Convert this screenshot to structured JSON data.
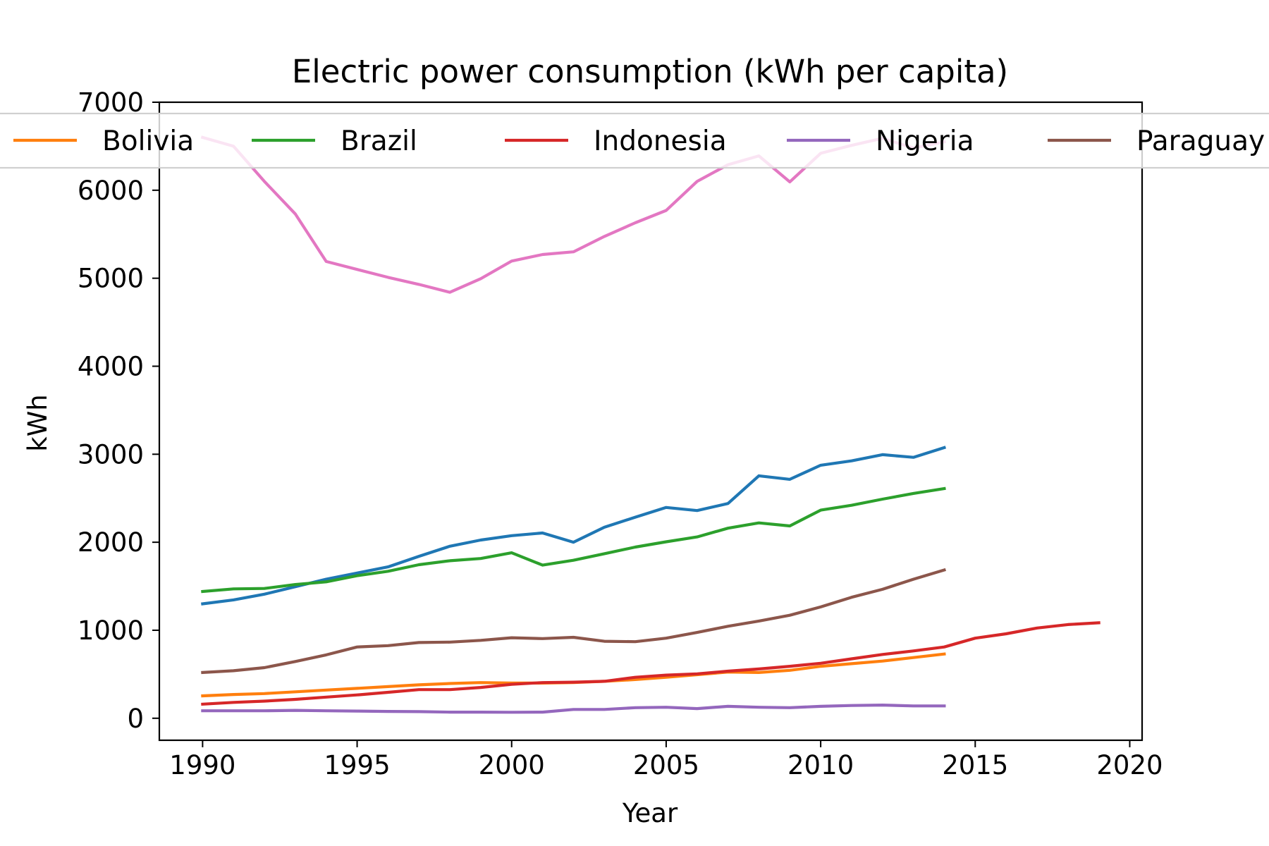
{
  "chart_data": {
    "type": "line",
    "title": "Electric power consumption (kWh per capita)",
    "xlabel": "Year",
    "ylabel": "kWh",
    "xlim": [
      1988.6,
      2020.4
    ],
    "ylim": [
      -250,
      7000
    ],
    "xticks": [
      1990,
      1995,
      2000,
      2005,
      2010,
      2015,
      2020
    ],
    "yticks": [
      0,
      1000,
      2000,
      3000,
      4000,
      5000,
      6000,
      7000
    ],
    "grid": false,
    "legend_position": "top, overlapping plot, extending beyond frame",
    "series": [
      {
        "name": "",
        "color": "#1f77b4",
        "x": [
          1990,
          1991,
          1992,
          1993,
          1994,
          1995,
          1996,
          1997,
          1998,
          1999,
          2000,
          2001,
          2002,
          2003,
          2004,
          2005,
          2006,
          2007,
          2008,
          2009,
          2010,
          2011,
          2012,
          2013,
          2014
        ],
        "y": [
          1300,
          1345,
          1410,
          1495,
          1580,
          1650,
          1720,
          1840,
          1955,
          2025,
          2075,
          2105,
          2000,
          2170,
          2285,
          2395,
          2360,
          2440,
          2755,
          2715,
          2875,
          2925,
          2995,
          2965,
          3075
        ]
      },
      {
        "name": "Bolivia",
        "color": "#ff7f0e",
        "x": [
          1990,
          1991,
          1992,
          1993,
          1994,
          1995,
          1996,
          1997,
          1998,
          1999,
          2000,
          2001,
          2002,
          2003,
          2004,
          2005,
          2006,
          2007,
          2008,
          2009,
          2010,
          2011,
          2012,
          2013,
          2014
        ],
        "y": [
          255,
          270,
          280,
          300,
          320,
          340,
          360,
          380,
          395,
          405,
          400,
          400,
          405,
          420,
          440,
          465,
          495,
          525,
          520,
          545,
          590,
          620,
          650,
          690,
          730
        ]
      },
      {
        "name": "Brazil",
        "color": "#2ca02c",
        "x": [
          1990,
          1991,
          1992,
          1993,
          1994,
          1995,
          1996,
          1997,
          1998,
          1999,
          2000,
          2001,
          2002,
          2003,
          2004,
          2005,
          2006,
          2007,
          2008,
          2009,
          2010,
          2011,
          2012,
          2013,
          2014
        ],
        "y": [
          1440,
          1470,
          1475,
          1520,
          1550,
          1620,
          1670,
          1745,
          1790,
          1815,
          1880,
          1740,
          1795,
          1870,
          1945,
          2005,
          2060,
          2160,
          2220,
          2185,
          2365,
          2420,
          2490,
          2555,
          2610
        ]
      },
      {
        "name": "Indonesia",
        "color": "#d62728",
        "x": [
          1990,
          1991,
          1992,
          1993,
          1994,
          1995,
          1996,
          1997,
          1998,
          1999,
          2000,
          2001,
          2002,
          2003,
          2004,
          2005,
          2006,
          2007,
          2008,
          2009,
          2010,
          2011,
          2012,
          2013,
          2014,
          2015,
          2016,
          2017,
          2018,
          2019
        ],
        "y": [
          160,
          180,
          195,
          215,
          240,
          265,
          295,
          325,
          325,
          350,
          385,
          405,
          410,
          420,
          465,
          490,
          505,
          535,
          560,
          590,
          625,
          675,
          725,
          765,
          810,
          910,
          960,
          1025,
          1065,
          1085
        ]
      },
      {
        "name": "Nigeria",
        "color": "#9467bd",
        "x": [
          1990,
          1991,
          1992,
          1993,
          1994,
          1995,
          1996,
          1997,
          1998,
          1999,
          2000,
          2001,
          2002,
          2003,
          2004,
          2005,
          2006,
          2007,
          2008,
          2009,
          2010,
          2011,
          2012,
          2013,
          2014
        ],
        "y": [
          85,
          85,
          85,
          90,
          85,
          82,
          78,
          75,
          70,
          70,
          68,
          70,
          100,
          100,
          120,
          125,
          110,
          135,
          125,
          120,
          135,
          145,
          150,
          140,
          140
        ]
      },
      {
        "name": "Paraguay",
        "color": "#8c564b",
        "x": [
          1990,
          1991,
          1992,
          1993,
          1994,
          1995,
          1996,
          1997,
          1998,
          1999,
          2000,
          2001,
          2002,
          2003,
          2004,
          2005,
          2006,
          2007,
          2008,
          2009,
          2010,
          2011,
          2012,
          2013,
          2014
        ],
        "y": [
          520,
          540,
          575,
          645,
          720,
          810,
          825,
          860,
          865,
          885,
          915,
          905,
          920,
          875,
          870,
          910,
          975,
          1045,
          1105,
          1170,
          1265,
          1375,
          1465,
          1580,
          1685
        ]
      },
      {
        "name": "",
        "color": "#e377c2",
        "x": [
          1990,
          1991,
          1992,
          1993,
          1994,
          1995,
          1996,
          1997,
          1998,
          1999,
          2000,
          2001,
          2002,
          2003,
          2004,
          2005,
          2006,
          2007,
          2008,
          2009,
          2010,
          2011,
          2012,
          2013,
          2014
        ],
        "y": [
          6600,
          6500,
          6100,
          5730,
          5190,
          5100,
          5010,
          4930,
          4840,
          4995,
          5195,
          5270,
          5300,
          5475,
          5630,
          5770,
          6100,
          6290,
          6390,
          6095,
          6420,
          6510,
          6590,
          6480,
          6550
        ]
      }
    ]
  }
}
